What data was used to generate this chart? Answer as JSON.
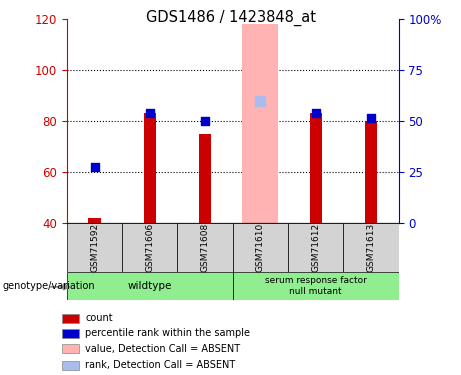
{
  "title": "GDS1486 / 1423848_at",
  "samples": [
    "GSM71592",
    "GSM71606",
    "GSM71608",
    "GSM71610",
    "GSM71612",
    "GSM71613"
  ],
  "bar_values": [
    42,
    83,
    75,
    null,
    83,
    80
  ],
  "absent_bar_value": 118,
  "absent_bar_color": "#ffb3b3",
  "absent_bar_index": 3,
  "rank_values": [
    62,
    83,
    80,
    null,
    83,
    81
  ],
  "absent_rank_value": 88,
  "absent_rank_color": "#aabbee",
  "rank_color": "#0000cc",
  "bar_color": "#cc0000",
  "ylim": [
    40,
    120
  ],
  "y2lim": [
    0,
    100
  ],
  "yticks": [
    40,
    60,
    80,
    100,
    120
  ],
  "y2ticks": [
    0,
    25,
    50,
    75,
    100
  ],
  "y2tick_labels": [
    "0",
    "25",
    "50",
    "75",
    "100%"
  ],
  "wildtype_label": "wildtype",
  "srf_label": "serum response factor\nnull mutant",
  "group_color": "#90ee90",
  "genotype_label": "genotype/variation",
  "legend_items": [
    {
      "label": "count",
      "color": "#cc0000"
    },
    {
      "label": "percentile rank within the sample",
      "color": "#0000cc"
    },
    {
      "label": "value, Detection Call = ABSENT",
      "color": "#ffb3b3"
    },
    {
      "label": "rank, Detection Call = ABSENT",
      "color": "#aabbee"
    }
  ],
  "sample_box_color": "#d3d3d3",
  "left_axis_color": "#cc0000",
  "right_axis_color": "#0000cc"
}
